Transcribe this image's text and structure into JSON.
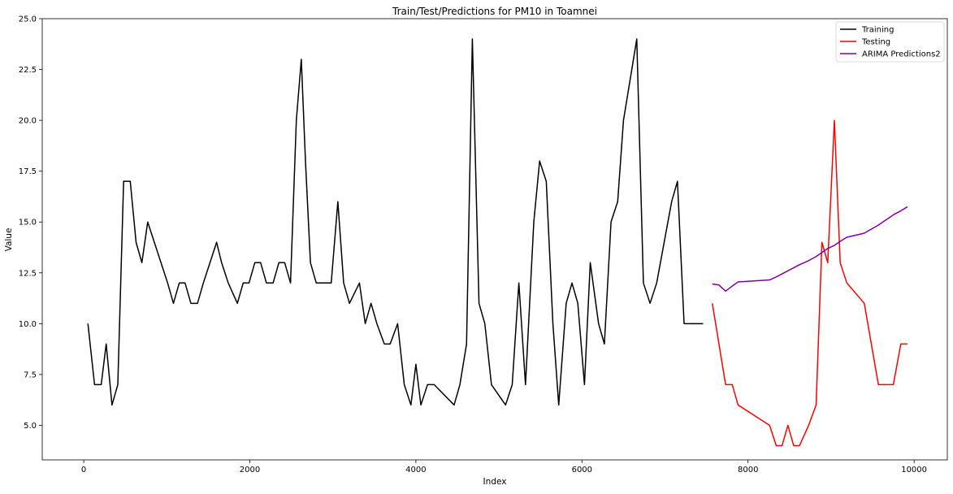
{
  "chart_data": {
    "type": "line",
    "title": "Train/Test/Predictions for PM10 in Toamnei",
    "xlabel": "Index",
    "ylabel": "Value",
    "xlim": [
      -500,
      10400
    ],
    "ylim": [
      3.3,
      25.0
    ],
    "x_ticks": [
      0,
      2000,
      4000,
      6000,
      8000,
      10000
    ],
    "x_tick_labels": [
      "0",
      "2000",
      "4000",
      "6000",
      "8000",
      "10000"
    ],
    "y_ticks": [
      5.0,
      7.5,
      10.0,
      12.5,
      15.0,
      17.5,
      20.0,
      22.5,
      25.0
    ],
    "y_tick_labels": [
      "5.0",
      "7.5",
      "10.0",
      "12.5",
      "15.0",
      "17.5",
      "20.0",
      "22.5",
      "25.0"
    ],
    "grid": false,
    "legend_position": "top-right",
    "series": [
      {
        "name": "Training",
        "color": "#000000",
        "x": [
          50,
          130,
          210,
          270,
          340,
          410,
          480,
          560,
          630,
          700,
          770,
          850,
          930,
          1010,
          1080,
          1150,
          1220,
          1290,
          1370,
          1440,
          1520,
          1600,
          1660,
          1740,
          1850,
          1920,
          1990,
          2060,
          2130,
          2200,
          2280,
          2350,
          2420,
          2490,
          2560,
          2620,
          2670,
          2730,
          2800,
          2980,
          3060,
          3130,
          3200,
          3320,
          3390,
          3460,
          3530,
          3620,
          3690,
          3780,
          3860,
          3940,
          4000,
          4060,
          4140,
          4220,
          4460,
          4530,
          4610,
          4680,
          4760,
          4830,
          4910,
          5080,
          5160,
          5240,
          5320,
          5420,
          5490,
          5570,
          5650,
          5720,
          5810,
          5880,
          5950,
          6030,
          6100,
          6200,
          6270,
          6350,
          6430,
          6500,
          6580,
          6660,
          6740,
          6820,
          6900,
          7080,
          7150,
          7230,
          7310,
          7380,
          7460
        ],
        "values": [
          10,
          7,
          7,
          9,
          6,
          7,
          17,
          17,
          14,
          13,
          15,
          14,
          13,
          12,
          11,
          12,
          12,
          11,
          11,
          12,
          13,
          14,
          13,
          12,
          11,
          12,
          12,
          13,
          13,
          12,
          12,
          13,
          13,
          12,
          20,
          23,
          18,
          13,
          12,
          12,
          16,
          12,
          11,
          12,
          10,
          11,
          10,
          9,
          9,
          10,
          7,
          6,
          8,
          6,
          7,
          7,
          6,
          7,
          9,
          24,
          11,
          10,
          7,
          6,
          7,
          12,
          7,
          15,
          18,
          17,
          10,
          6,
          11,
          12,
          11,
          7,
          13,
          10,
          9,
          15,
          16,
          20,
          22,
          24,
          12,
          11,
          12,
          16,
          17,
          10,
          10,
          10,
          10
        ]
      },
      {
        "name": "Testing",
        "color": "#ff0000",
        "x": [
          7570,
          7650,
          7730,
          7810,
          7880,
          8260,
          8340,
          8410,
          8480,
          8550,
          8620,
          8730,
          8820,
          8890,
          8960,
          9040,
          9110,
          9190,
          9400,
          9570,
          9750,
          9840,
          9920
        ],
        "values": [
          11,
          9,
          7,
          7,
          6,
          5,
          4,
          4,
          5,
          4,
          4,
          5,
          6,
          14,
          13,
          20,
          13,
          12,
          11,
          7,
          7,
          9,
          9
        ]
      },
      {
        "name": "ARIMA Predictions2",
        "color": "#8000a0",
        "x": [
          7570,
          7650,
          7730,
          7810,
          7880,
          8260,
          8340,
          8410,
          8480,
          8550,
          8620,
          8730,
          8820,
          8890,
          8960,
          9040,
          9110,
          9190,
          9400,
          9570,
          9750,
          9840,
          9920
        ],
        "values": [
          11.95,
          11.9,
          11.6,
          11.85,
          12.05,
          12.15,
          12.3,
          12.45,
          12.6,
          12.75,
          12.9,
          13.1,
          13.3,
          13.5,
          13.7,
          13.85,
          14.05,
          14.25,
          14.45,
          14.85,
          15.35,
          15.55,
          15.75
        ]
      }
    ]
  }
}
